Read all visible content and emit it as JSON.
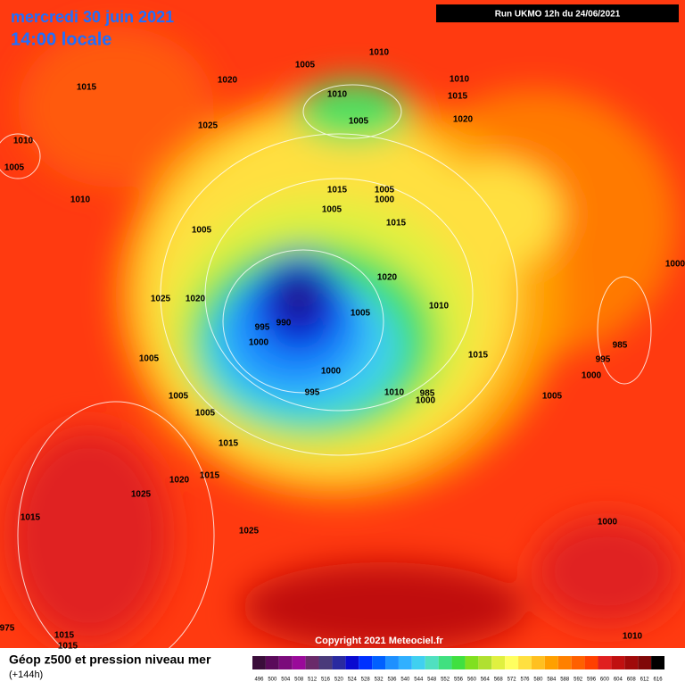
{
  "header": {
    "date": "mercredi 30 juin 2021",
    "time": "14:00 locale",
    "run": "Run UKMO 12h du 24/06/2021"
  },
  "copyright": "Copyright 2021 Meteociel.fr",
  "footer": {
    "title": "Géop z500 et pression niveau mer",
    "lead": "(+144h)"
  },
  "legend": {
    "values": [
      496,
      500,
      504,
      508,
      512,
      516,
      520,
      524,
      528,
      532,
      536,
      540,
      544,
      548,
      552,
      556,
      560,
      564,
      568,
      572,
      576,
      580,
      584,
      588,
      592,
      596,
      600,
      604,
      608,
      612,
      616
    ],
    "colors": [
      "#3a0d3a",
      "#5a0a5a",
      "#7b0b7b",
      "#9a0a9a",
      "#6a2a6a",
      "#4a3a7a",
      "#2a2aa0",
      "#0a0ad0",
      "#0030ff",
      "#0060ff",
      "#1e90ff",
      "#30b0ff",
      "#40d0f0",
      "#50e0c0",
      "#40e080",
      "#40e040",
      "#80e020",
      "#b0e030",
      "#e0f040",
      "#ffff60",
      "#ffe040",
      "#ffc020",
      "#ffa000",
      "#ff8000",
      "#ff6000",
      "#ff4000",
      "#e02020",
      "#c01010",
      "#a00a0a",
      "#800808",
      "#000000"
    ]
  },
  "isobar_labels": [
    "1010",
    "1005",
    "1015",
    "1020",
    "1010",
    "1005",
    "1010",
    "1015",
    "1020",
    "1025",
    "1010",
    "1005",
    "1015",
    "1005",
    "1000",
    "1010",
    "1005",
    "1015",
    "1005",
    "1000",
    "1020",
    "1025",
    "1020",
    "1010",
    "1005",
    "995",
    "990",
    "1000",
    "985",
    "1015",
    "1005",
    "995",
    "1000",
    "1000",
    "995",
    "1010",
    "985",
    "1000",
    "1005",
    "1005",
    "1005",
    "1015",
    "1015",
    "1020",
    "1025",
    "1015",
    "1000",
    "1025",
    "1015",
    "1010",
    "1015",
    "975"
  ]
}
